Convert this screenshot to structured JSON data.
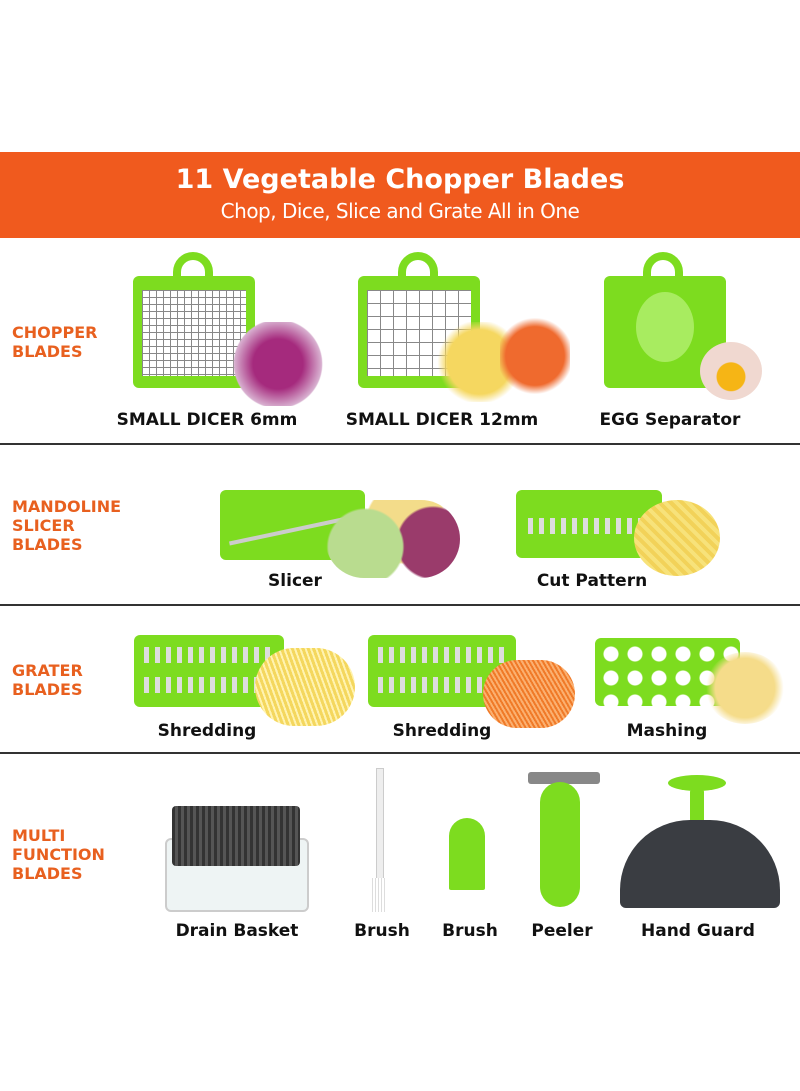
{
  "header": {
    "title": "11 Vegetable Chopper Blades",
    "subtitle": "Chop, Dice, Slice and Grate All in One"
  },
  "colors": {
    "accent": "#f05a1e",
    "blade_green": "#7ddc1f"
  },
  "sections": [
    {
      "label": "CHOPPER\nBLADES",
      "items": [
        "SMALL DICER 6mm",
        "SMALL DICER 12mm",
        "EGG Separator"
      ]
    },
    {
      "label": "MANDOLINE\nSLICER\nBLADES",
      "items": [
        "Slicer",
        "Cut Pattern"
      ]
    },
    {
      "label": "GRATER\nBLADES",
      "items": [
        "Shredding",
        "Shredding",
        "Mashing"
      ]
    },
    {
      "label": "MULTI\nFUNCTION\nBLADES",
      "items": [
        "Drain Basket",
        "Brush",
        "Brush",
        "Peeler",
        "Hand Guard"
      ]
    }
  ]
}
